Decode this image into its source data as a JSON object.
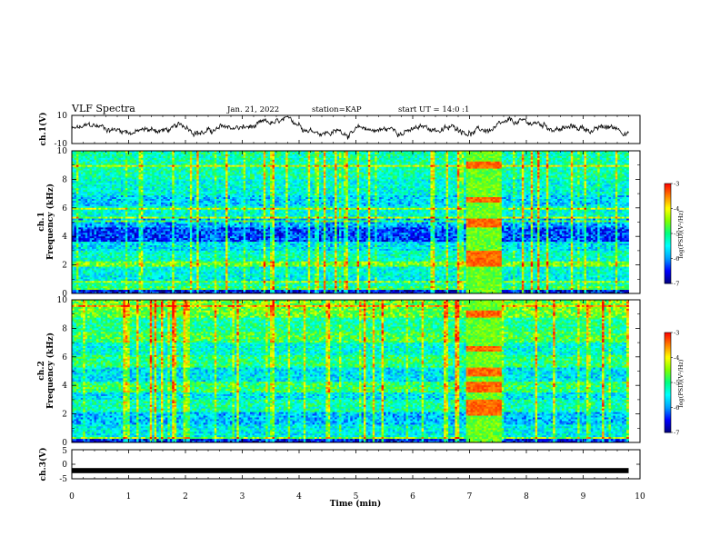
{
  "header": {
    "title": "VLF Spectra",
    "date": "Jan. 21, 2022",
    "station": "station=KAP",
    "start": "start UT = 14:0 :1"
  },
  "chart_data": [
    {
      "id": "ch1-waveform",
      "type": "line",
      "ylabel": "ch.1(V)",
      "yticks": [
        "10",
        "-10"
      ],
      "ylim": [
        -10,
        10
      ],
      "xlim": [
        0,
        10
      ],
      "description": "random-walk-like amplitude trace between roughly -8 and 8 V over 0 to 9.8 min",
      "x_end": 9.8
    },
    {
      "id": "ch1-spectrogram",
      "type": "heatmap",
      "ylabel": "ch.1 Frequency (kHz)",
      "yticks": [
        "0",
        "2",
        "4",
        "6",
        "8",
        "10"
      ],
      "ylim": [
        0,
        10
      ],
      "xlim": [
        0,
        10
      ],
      "x_end": 9.8,
      "colorbar": {
        "label": "log(PSD)(V²/Hz)",
        "ticks": [
          "-3",
          "-4",
          "-5",
          "-6",
          "-7"
        ],
        "range": [
          -7,
          -3
        ]
      },
      "band_levels": [
        [
          0.0,
          0.3,
          -6.6
        ],
        [
          0.3,
          0.5,
          -4.9
        ],
        [
          0.5,
          0.7,
          -5.2
        ],
        [
          0.7,
          1.2,
          -5.5
        ],
        [
          1.2,
          1.9,
          -5.4
        ],
        [
          1.9,
          2.3,
          -4.6
        ],
        [
          2.3,
          3.0,
          -5.3
        ],
        [
          3.0,
          3.6,
          -5.6
        ],
        [
          3.6,
          4.6,
          -6.3
        ],
        [
          4.6,
          5.3,
          -5.9
        ],
        [
          5.3,
          6.1,
          -5.4
        ],
        [
          6.1,
          6.9,
          -5.7
        ],
        [
          6.9,
          8.0,
          -5.4
        ],
        [
          8.0,
          10.0,
          -5.2
        ]
      ],
      "burst_interval": [
        6.95,
        7.55
      ]
    },
    {
      "id": "ch2-spectrogram",
      "type": "heatmap",
      "ylabel": "ch.2 Frequency (kHz)",
      "yticks": [
        "0",
        "2",
        "4",
        "6",
        "8",
        "10"
      ],
      "ylim": [
        0,
        10
      ],
      "xlim": [
        0,
        10
      ],
      "x_end": 9.8,
      "colorbar": {
        "label": "log(PSD)(V²/Hz)",
        "ticks": [
          "-3",
          "-4",
          "-5",
          "-6",
          "-7"
        ],
        "range": [
          -7,
          -3
        ]
      },
      "band_levels": [
        [
          0.0,
          0.3,
          -6.5
        ],
        [
          0.3,
          1.2,
          -5.5
        ],
        [
          1.2,
          2.1,
          -5.8
        ],
        [
          2.1,
          3.0,
          -5.2
        ],
        [
          3.0,
          3.5,
          -5.6
        ],
        [
          3.5,
          4.3,
          -4.9
        ],
        [
          4.3,
          5.3,
          -5.6
        ],
        [
          5.3,
          6.1,
          -5.0
        ],
        [
          6.1,
          7.0,
          -5.4
        ],
        [
          7.0,
          7.8,
          -4.8
        ],
        [
          7.8,
          8.7,
          -5.1
        ],
        [
          8.7,
          10.0,
          -4.6
        ]
      ],
      "burst_interval": [
        6.95,
        7.55
      ]
    },
    {
      "id": "ch3-waveform",
      "type": "line",
      "ylabel": "ch.3(V)",
      "yticks": [
        "5",
        "0",
        "-5"
      ],
      "ylim": [
        -5,
        5
      ],
      "xlim": [
        0,
        10
      ],
      "constant_value": -2.2,
      "x_end": 9.8,
      "xlabel": "Time (min)",
      "xticks": [
        "0",
        "1",
        "2",
        "3",
        "4",
        "5",
        "6",
        "7",
        "8",
        "9",
        "10"
      ]
    }
  ],
  "colors": {
    "colormap": [
      "#000080",
      "#0000ff",
      "#00a0ff",
      "#00ffff",
      "#00ff80",
      "#80ff00",
      "#ffff00",
      "#ff8000",
      "#ff0000",
      "#ffffff"
    ]
  }
}
